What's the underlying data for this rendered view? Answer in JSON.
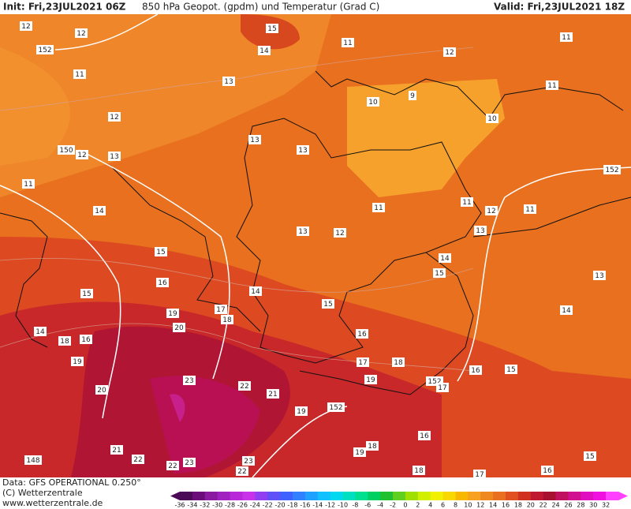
{
  "header": {
    "init": "Init: Fri,23JUL2021 06Z",
    "title": "850 hPa Geopot. (gpdm) und Temperatur (Grad C)",
    "valid": "Valid: Fri,23JUL2021 18Z"
  },
  "footer": {
    "data": "Data: GFS OPERATIONAL 0.250°",
    "copyright": "(C) Wetterzentrale",
    "url": "www.wetterzentrale.de"
  },
  "scale": {
    "labels": [
      -36,
      -34,
      -32,
      -30,
      -28,
      -26,
      -24,
      -22,
      -20,
      -18,
      -16,
      -14,
      -12,
      -10,
      -8,
      -6,
      -4,
      -2,
      0,
      2,
      4,
      6,
      8,
      10,
      12,
      14,
      16,
      18,
      20,
      22,
      24,
      26,
      28,
      30,
      32
    ],
    "colors": [
      "#4b0a55",
      "#6a0d7a",
      "#8a1aa0",
      "#a020c0",
      "#b828d8",
      "#c832e8",
      "#9040f0",
      "#6050f8",
      "#4060ff",
      "#3080ff",
      "#20a0ff",
      "#10c0ff",
      "#00d8f0",
      "#00e0c0",
      "#00e090",
      "#00d060",
      "#20c030",
      "#60d020",
      "#a0e000",
      "#d0f000",
      "#f0f000",
      "#f8d800",
      "#f8b800",
      "#f8a020",
      "#f08820",
      "#e87020",
      "#e05020",
      "#d03020",
      "#c01830",
      "#a81030",
      "#c01060",
      "#d01090",
      "#e010c0",
      "#f010e0",
      "#ff40ff"
    ]
  },
  "map": {
    "labels": [
      12,
      12,
      152,
      11,
      13,
      12,
      13,
      12,
      150,
      11,
      14,
      13,
      13,
      15,
      14,
      11,
      12,
      11,
      10,
      9,
      10,
      11,
      152,
      11,
      12,
      11,
      13,
      11,
      13,
      12,
      15,
      16,
      15,
      14,
      14,
      15,
      15,
      13,
      14,
      17,
      18,
      19,
      20,
      14,
      18,
      16,
      19,
      16,
      17,
      18,
      16,
      15,
      23,
      22,
      21,
      20,
      19,
      152,
      17,
      19,
      152,
      16,
      18,
      19,
      21,
      22,
      22,
      23,
      23,
      148,
      15,
      16,
      18,
      17,
      22
    ]
  }
}
